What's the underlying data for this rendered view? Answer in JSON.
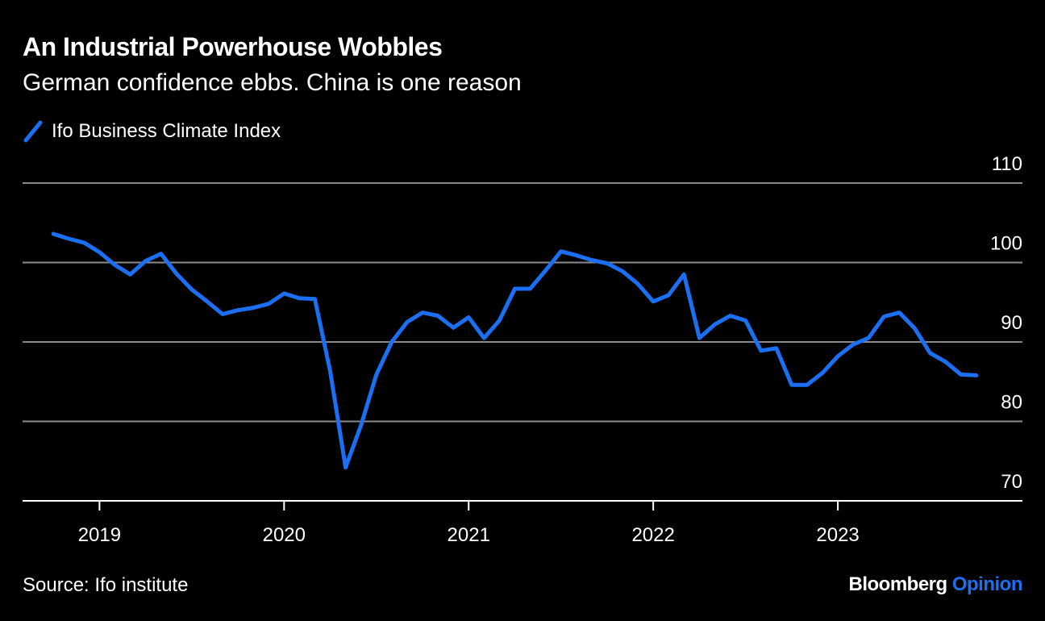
{
  "header": {
    "title": "An Industrial Powerhouse Wobbles",
    "subtitle": "German confidence ebbs. China is one reason"
  },
  "footer": {
    "source": "Source: Ifo institute",
    "brand_main": "Bloomberg",
    "brand_accent": "Opinion"
  },
  "colors": {
    "background": "#000000",
    "line": "#1b6ff2",
    "grid": "#8a8a8a",
    "text": "#ffffff"
  },
  "chart_data": {
    "type": "line",
    "title": "An Industrial Powerhouse Wobbles",
    "subtitle": "German confidence ebbs. China is one reason",
    "xlabel": "",
    "ylabel": "",
    "ylim": [
      70,
      110
    ],
    "xlim": [
      "2018-08",
      "2024-01"
    ],
    "y_ticks": [
      70,
      80,
      90,
      100,
      110
    ],
    "x_ticks": [
      {
        "label": "2019",
        "date": "2019-01"
      },
      {
        "label": "2020",
        "date": "2020-01"
      },
      {
        "label": "2021",
        "date": "2021-01"
      },
      {
        "label": "2022",
        "date": "2022-01"
      },
      {
        "label": "2023",
        "date": "2023-01"
      }
    ],
    "grid": true,
    "y_axis_position": "right",
    "legend_position": "top-left",
    "source": "Source: Ifo institute",
    "series": [
      {
        "name": "Ifo Business Climate Index",
        "color": "#1b6ff2",
        "x": [
          "2018-10",
          "2018-11",
          "2018-12",
          "2019-01",
          "2019-02",
          "2019-03",
          "2019-04",
          "2019-05",
          "2019-06",
          "2019-07",
          "2019-08",
          "2019-09",
          "2019-10",
          "2019-11",
          "2019-12",
          "2020-01",
          "2020-02",
          "2020-03",
          "2020-04",
          "2020-05",
          "2020-06",
          "2020-07",
          "2020-08",
          "2020-09",
          "2020-10",
          "2020-11",
          "2020-12",
          "2021-01",
          "2021-02",
          "2021-03",
          "2021-04",
          "2021-05",
          "2021-06",
          "2021-07",
          "2021-08",
          "2021-09",
          "2021-10",
          "2021-11",
          "2021-12",
          "2022-01",
          "2022-02",
          "2022-03",
          "2022-04",
          "2022-05",
          "2022-06",
          "2022-07",
          "2022-08",
          "2022-09",
          "2022-10",
          "2022-11",
          "2022-12",
          "2023-01",
          "2023-02",
          "2023-03",
          "2023-04",
          "2023-05",
          "2023-06",
          "2023-07",
          "2023-08",
          "2023-09",
          "2023-10"
        ],
        "values": [
          103.6,
          103.0,
          102.5,
          101.3,
          99.7,
          98.5,
          100.2,
          101.1,
          98.6,
          96.6,
          95.1,
          93.5,
          94.0,
          94.3,
          94.8,
          96.1,
          95.5,
          95.4,
          86.3,
          74.2,
          79.5,
          85.9,
          90.0,
          92.5,
          93.7,
          93.3,
          91.8,
          93.1,
          90.5,
          92.7,
          96.7,
          96.7,
          99.0,
          101.4,
          100.9,
          100.3,
          99.9,
          98.9,
          97.3,
          95.1,
          95.9,
          98.5,
          90.5,
          92.2,
          93.3,
          92.7,
          88.9,
          89.2,
          84.6,
          84.6,
          86.1,
          88.2,
          89.7,
          90.5,
          93.2,
          93.7,
          91.7,
          88.6,
          87.5,
          85.9,
          85.8
        ]
      }
    ]
  }
}
